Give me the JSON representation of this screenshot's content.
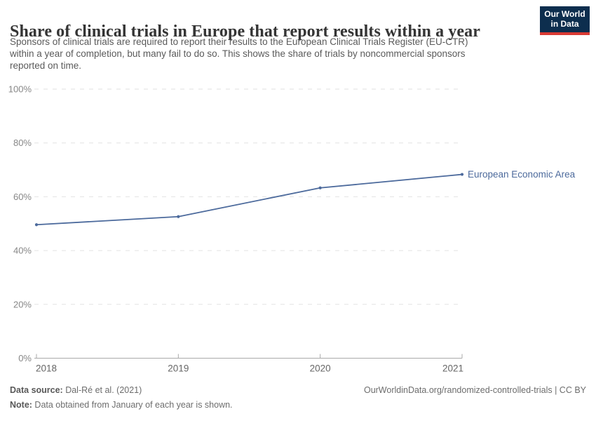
{
  "header": {
    "title": "Share of clinical trials in Europe that report results within a year",
    "subtitle_lines": [
      "Sponsors of clinical trials are required to report their results to the European Clinical Trials Register (EU-CTR)",
      "within a year of completion, but many fail to do so. This shows the share of trials by noncommercial sponsors",
      "reported on time."
    ],
    "logo": {
      "line1": "Our World",
      "line2": "in Data",
      "bg_color": "#0d2e4e",
      "bar_color": "#d93a34"
    }
  },
  "chart_data": {
    "type": "line",
    "title": "Share of clinical trials in Europe that report results within a year",
    "x": [
      2018,
      2019,
      2020,
      2021
    ],
    "series": [
      {
        "name": "European Economic Area",
        "color": "#4C6A9C",
        "values": [
          49.6,
          52.6,
          63.3,
          68.3
        ]
      }
    ],
    "xlabel": "",
    "ylabel": "",
    "ylim": [
      0,
      100
    ],
    "y_ticks": [
      0,
      20,
      40,
      60,
      80,
      100
    ],
    "y_tick_suffix": "%",
    "grid": "horizontal-dashed",
    "legend_position": "right-of-line-end"
  },
  "footer": {
    "source_label": "Data source:",
    "source_value": " Dal-Ré et al. (2021)",
    "note_label": "Note:",
    "note_value": " Data obtained from January of each year is shown.",
    "link": "OurWorldinData.org/randomized-controlled-trials | CC BY"
  },
  "colors": {
    "accent_line": "#4C6A9C",
    "gridline": "#e2e2e2",
    "axis": "#a9a9a9",
    "y_tick_text": "#878787",
    "x_tick_text": "#666666"
  }
}
